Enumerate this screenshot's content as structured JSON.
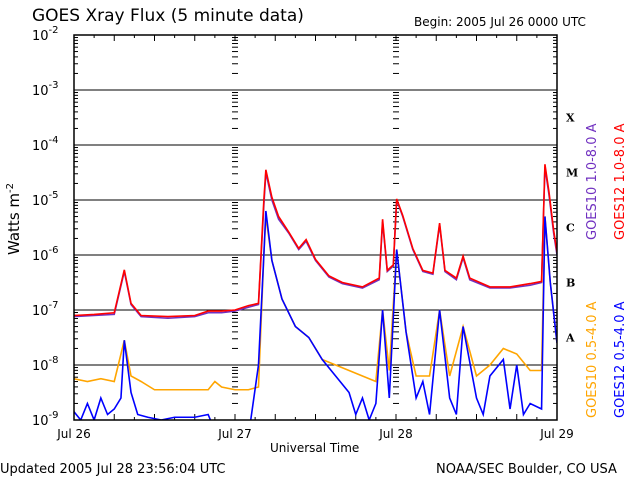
{
  "chart_data": {
    "type": "line",
    "title": "GOES Xray Flux (5 minute data)",
    "begin": "Begin:  2005 Jul 26 0000 UTC",
    "xlabel": "Universal Time",
    "ylabel": "Watts m",
    "ylabel_sup": "-2",
    "x_unit": "hours since 2005 Jul 26 0000 UTC",
    "xlim": [
      0,
      72
    ],
    "ylim_log10": [
      -9,
      -2
    ],
    "y_ticks": [
      {
        "base": "10",
        "exp": "-2"
      },
      {
        "base": "10",
        "exp": "-3"
      },
      {
        "base": "10",
        "exp": "-4"
      },
      {
        "base": "10",
        "exp": "-5"
      },
      {
        "base": "10",
        "exp": "-6"
      },
      {
        "base": "10",
        "exp": "-7"
      },
      {
        "base": "10",
        "exp": "-8"
      },
      {
        "base": "10",
        "exp": "-9"
      }
    ],
    "x_ticks": [
      {
        "h": 0,
        "label": "Jul 26"
      },
      {
        "h": 24,
        "label": "Jul 27"
      },
      {
        "h": 48,
        "label": "Jul 28"
      },
      {
        "h": 72,
        "label": "Jul 29"
      }
    ],
    "flare_classes": [
      {
        "label": "X",
        "log": -3.5
      },
      {
        "label": "M",
        "log": -4.5
      },
      {
        "label": "C",
        "log": -5.5
      },
      {
        "label": "B",
        "log": -6.5
      },
      {
        "label": "A",
        "log": -7.5
      }
    ],
    "series": [
      {
        "name": "GOES10 1.0-8.0 A",
        "color": "#7030c0",
        "points": [
          [
            0,
            -7.12
          ],
          [
            3,
            -7.1
          ],
          [
            6,
            -7.08
          ],
          [
            7.5,
            -6.3
          ],
          [
            8.5,
            -6.9
          ],
          [
            10,
            -7.12
          ],
          [
            14,
            -7.15
          ],
          [
            18,
            -7.12
          ],
          [
            20,
            -7.05
          ],
          [
            22,
            -7.05
          ],
          [
            24,
            -7.02
          ],
          [
            26,
            -6.95
          ],
          [
            27.5,
            -6.9
          ],
          [
            28.3,
            -5.1
          ],
          [
            28.6,
            -4.5
          ],
          [
            29.5,
            -5.0
          ],
          [
            30.5,
            -5.35
          ],
          [
            32,
            -5.6
          ],
          [
            33.5,
            -5.9
          ],
          [
            34.6,
            -5.75
          ],
          [
            36,
            -6.1
          ],
          [
            38,
            -6.4
          ],
          [
            40,
            -6.52
          ],
          [
            43,
            -6.6
          ],
          [
            45.5,
            -6.45
          ],
          [
            46,
            -5.4
          ],
          [
            46.7,
            -6.3
          ],
          [
            47.6,
            -6.2
          ],
          [
            48.1,
            -5.0
          ],
          [
            49,
            -5.3
          ],
          [
            50.5,
            -5.9
          ],
          [
            52,
            -6.3
          ],
          [
            53.5,
            -6.35
          ],
          [
            54.5,
            -5.45
          ],
          [
            55.3,
            -6.3
          ],
          [
            57,
            -6.45
          ],
          [
            58,
            -6.05
          ],
          [
            59,
            -6.45
          ],
          [
            62,
            -6.6
          ],
          [
            65,
            -6.6
          ],
          [
            68,
            -6.55
          ],
          [
            69.7,
            -6.5
          ],
          [
            70.2,
            -4.4
          ],
          [
            70.8,
            -4.9
          ],
          [
            71.5,
            -5.6
          ],
          [
            72,
            -6.0
          ]
        ]
      },
      {
        "name": "GOES12 1.0-8.0 A",
        "color": "#ff0000",
        "points": [
          [
            0,
            -7.1
          ],
          [
            3,
            -7.08
          ],
          [
            6,
            -7.05
          ],
          [
            7.5,
            -6.27
          ],
          [
            8.5,
            -6.88
          ],
          [
            10,
            -7.1
          ],
          [
            14,
            -7.12
          ],
          [
            18,
            -7.1
          ],
          [
            20,
            -7.02
          ],
          [
            22,
            -7.02
          ],
          [
            24,
            -7.0
          ],
          [
            26,
            -6.92
          ],
          [
            27.5,
            -6.88
          ],
          [
            28.3,
            -5.0
          ],
          [
            28.6,
            -4.45
          ],
          [
            29.5,
            -4.95
          ],
          [
            30.5,
            -5.3
          ],
          [
            32,
            -5.58
          ],
          [
            33.5,
            -5.88
          ],
          [
            34.6,
            -5.72
          ],
          [
            36,
            -6.08
          ],
          [
            38,
            -6.38
          ],
          [
            40,
            -6.5
          ],
          [
            43,
            -6.58
          ],
          [
            45.5,
            -6.42
          ],
          [
            46,
            -5.35
          ],
          [
            46.7,
            -6.28
          ],
          [
            47.6,
            -6.18
          ],
          [
            48.1,
            -4.98
          ],
          [
            49,
            -5.28
          ],
          [
            50.5,
            -5.88
          ],
          [
            52,
            -6.28
          ],
          [
            53.5,
            -6.33
          ],
          [
            54.5,
            -5.42
          ],
          [
            55.3,
            -6.28
          ],
          [
            57,
            -6.42
          ],
          [
            58,
            -6.02
          ],
          [
            59,
            -6.42
          ],
          [
            62,
            -6.58
          ],
          [
            65,
            -6.58
          ],
          [
            68,
            -6.52
          ],
          [
            69.7,
            -6.48
          ],
          [
            70.2,
            -4.35
          ],
          [
            70.8,
            -4.85
          ],
          [
            71.5,
            -5.55
          ],
          [
            72,
            -5.95
          ]
        ]
      },
      {
        "name": "GOES10 0.5-4.0 A",
        "color": "#ffa500",
        "points": [
          [
            0,
            -8.25
          ],
          [
            2,
            -8.3
          ],
          [
            4,
            -8.25
          ],
          [
            6,
            -8.3
          ],
          [
            7.5,
            -7.55
          ],
          [
            8.5,
            -8.2
          ],
          [
            10,
            -8.3
          ],
          [
            12,
            -8.45
          ],
          [
            16,
            -8.45
          ],
          [
            20,
            -8.45
          ],
          [
            21,
            -8.3
          ],
          [
            22,
            -8.4
          ],
          [
            24,
            -8.45
          ],
          [
            26,
            -8.45
          ],
          [
            27.5,
            -8.4
          ],
          [
            28.3,
            -6.0
          ],
          [
            28.6,
            -5.3
          ],
          [
            29.5,
            -6.1
          ],
          [
            31,
            -6.8
          ],
          [
            33,
            -7.3
          ],
          [
            35,
            -7.5
          ],
          [
            37,
            -7.9
          ],
          [
            39,
            -8.0
          ],
          [
            41,
            -8.1
          ],
          [
            43,
            -8.2
          ],
          [
            45,
            -8.3
          ],
          [
            46,
            -7.0
          ],
          [
            47,
            -8.1
          ],
          [
            48.1,
            -5.9
          ],
          [
            49.5,
            -7.4
          ],
          [
            51,
            -8.2
          ],
          [
            53,
            -8.2
          ],
          [
            54.5,
            -7.0
          ],
          [
            56,
            -8.2
          ],
          [
            58,
            -7.3
          ],
          [
            60,
            -8.2
          ],
          [
            62,
            -8.0
          ],
          [
            64,
            -7.7
          ],
          [
            66,
            -7.8
          ],
          [
            68,
            -8.1
          ],
          [
            69.7,
            -8.1
          ],
          [
            70.2,
            -5.3
          ],
          [
            71,
            -6.5
          ],
          [
            72,
            -7.6
          ]
        ]
      },
      {
        "name": "GOES12 0.5-4.0 A",
        "color": "#0000ff",
        "points": [
          [
            0,
            -8.85
          ],
          [
            1,
            -9.0
          ],
          [
            2,
            -8.7
          ],
          [
            3,
            -9.0
          ],
          [
            4,
            -8.6
          ],
          [
            5,
            -8.9
          ],
          [
            6,
            -8.8
          ],
          [
            7,
            -8.6
          ],
          [
            7.5,
            -7.55
          ],
          [
            8.5,
            -8.5
          ],
          [
            9.5,
            -8.9
          ],
          [
            11,
            -8.95
          ],
          [
            13,
            -9.0
          ],
          [
            15,
            -8.95
          ],
          [
            18,
            -8.95
          ],
          [
            20,
            -8.9
          ],
          [
            21,
            -9.2
          ],
          [
            24,
            -9.3
          ],
          [
            26,
            -9.3
          ],
          [
            27.5,
            -8.0
          ],
          [
            28.3,
            -6.0
          ],
          [
            28.6,
            -5.2
          ],
          [
            29.5,
            -6.1
          ],
          [
            31,
            -6.8
          ],
          [
            33,
            -7.3
          ],
          [
            35,
            -7.5
          ],
          [
            37,
            -7.9
          ],
          [
            39,
            -8.2
          ],
          [
            41,
            -8.5
          ],
          [
            42,
            -8.9
          ],
          [
            43,
            -8.6
          ],
          [
            44,
            -9.0
          ],
          [
            45,
            -8.7
          ],
          [
            46,
            -7.0
          ],
          [
            47,
            -8.6
          ],
          [
            48.1,
            -5.9
          ],
          [
            49.5,
            -7.4
          ],
          [
            51,
            -8.6
          ],
          [
            52,
            -8.3
          ],
          [
            53,
            -8.9
          ],
          [
            54.5,
            -7.0
          ],
          [
            56,
            -8.6
          ],
          [
            57,
            -8.9
          ],
          [
            58,
            -7.3
          ],
          [
            60,
            -8.6
          ],
          [
            61,
            -8.9
          ],
          [
            62,
            -8.2
          ],
          [
            64,
            -7.9
          ],
          [
            65,
            -8.8
          ],
          [
            66,
            -8.0
          ],
          [
            67,
            -8.9
          ],
          [
            68,
            -8.7
          ],
          [
            69.7,
            -8.8
          ],
          [
            70.2,
            -5.3
          ],
          [
            71,
            -6.5
          ],
          [
            72,
            -7.6
          ]
        ]
      }
    ]
  },
  "footer": {
    "updated": "Updated 2005 Jul 28 23:56:04 UTC",
    "credit": "NOAA/SEC Boulder, CO USA"
  }
}
